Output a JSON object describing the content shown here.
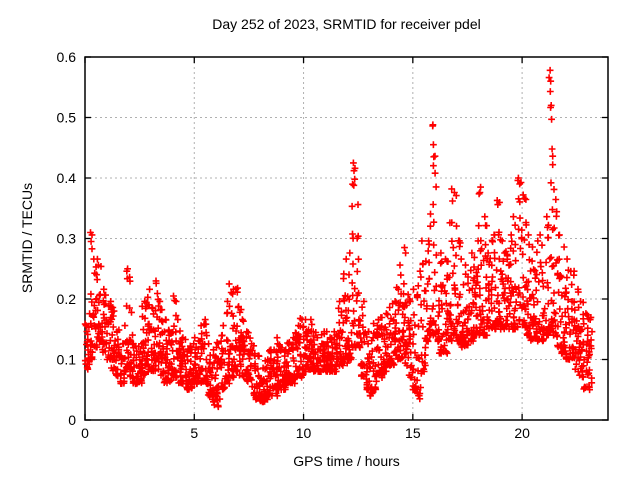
{
  "chart_data": {
    "type": "scatter",
    "title": "Day 252 of 2023, SRMTID for receiver pdel",
    "xlabel": "GPS time / hours",
    "ylabel": "SRMTID / TECUs",
    "xlim": [
      0,
      23.93
    ],
    "ylim": [
      0,
      0.6
    ],
    "xticks": {
      "values": [
        0,
        5,
        10,
        15,
        20
      ],
      "labels": [
        "0",
        "5",
        "10",
        "15",
        "20"
      ]
    },
    "yticks": {
      "values": [
        0,
        0.1,
        0.2,
        0.3,
        0.4,
        0.5,
        0.6
      ],
      "labels": [
        "0",
        "0.1",
        "0.2",
        "0.3",
        "0.4",
        "0.5",
        "0.6"
      ]
    },
    "grid": true,
    "grid_color": "#b0b0b0",
    "border_color": "#000000",
    "legend": "none",
    "marker": "plus",
    "marker_color": "#ff0000",
    "series": [
      {
        "name": "SRMTID",
        "points_per_bin": 20,
        "envelope_bins_hour_lo_hi": [
          [
            0.0,
            0.08,
            0.16
          ],
          [
            0.2,
            0.1,
            0.31
          ],
          [
            0.4,
            0.12,
            0.27
          ],
          [
            0.6,
            0.13,
            0.26
          ],
          [
            0.8,
            0.11,
            0.22
          ],
          [
            1.0,
            0.1,
            0.2
          ],
          [
            1.2,
            0.08,
            0.19
          ],
          [
            1.4,
            0.07,
            0.15
          ],
          [
            1.6,
            0.06,
            0.13
          ],
          [
            1.8,
            0.08,
            0.25
          ],
          [
            2.0,
            0.07,
            0.24
          ],
          [
            2.2,
            0.06,
            0.13
          ],
          [
            2.4,
            0.06,
            0.13
          ],
          [
            2.6,
            0.07,
            0.2
          ],
          [
            2.8,
            0.08,
            0.22
          ],
          [
            3.0,
            0.08,
            0.19
          ],
          [
            3.2,
            0.08,
            0.23
          ],
          [
            3.4,
            0.07,
            0.2
          ],
          [
            3.6,
            0.06,
            0.17
          ],
          [
            3.8,
            0.06,
            0.15
          ],
          [
            4.0,
            0.07,
            0.2
          ],
          [
            4.2,
            0.06,
            0.17
          ],
          [
            4.4,
            0.06,
            0.14
          ],
          [
            4.6,
            0.05,
            0.12
          ],
          [
            4.8,
            0.05,
            0.13
          ],
          [
            5.0,
            0.06,
            0.14
          ],
          [
            5.2,
            0.06,
            0.16
          ],
          [
            5.4,
            0.06,
            0.17
          ],
          [
            5.6,
            0.04,
            0.13
          ],
          [
            5.8,
            0.03,
            0.12
          ],
          [
            6.0,
            0.02,
            0.13
          ],
          [
            6.2,
            0.05,
            0.16
          ],
          [
            6.4,
            0.06,
            0.2
          ],
          [
            6.6,
            0.07,
            0.22
          ],
          [
            6.8,
            0.08,
            0.22
          ],
          [
            7.0,
            0.07,
            0.19
          ],
          [
            7.2,
            0.07,
            0.17
          ],
          [
            7.4,
            0.06,
            0.15
          ],
          [
            7.6,
            0.04,
            0.13
          ],
          [
            7.8,
            0.03,
            0.11
          ],
          [
            8.0,
            0.03,
            0.09
          ],
          [
            8.2,
            0.03,
            0.1
          ],
          [
            8.4,
            0.04,
            0.12
          ],
          [
            8.6,
            0.04,
            0.14
          ],
          [
            8.8,
            0.05,
            0.13
          ],
          [
            9.0,
            0.05,
            0.12
          ],
          [
            9.2,
            0.06,
            0.13
          ],
          [
            9.4,
            0.06,
            0.14
          ],
          [
            9.6,
            0.07,
            0.16
          ],
          [
            9.8,
            0.07,
            0.17
          ],
          [
            10.0,
            0.08,
            0.17
          ],
          [
            10.2,
            0.08,
            0.17
          ],
          [
            10.4,
            0.08,
            0.15
          ],
          [
            10.6,
            0.08,
            0.14
          ],
          [
            10.8,
            0.08,
            0.15
          ],
          [
            11.0,
            0.08,
            0.15
          ],
          [
            11.2,
            0.08,
            0.14
          ],
          [
            11.4,
            0.08,
            0.15
          ],
          [
            11.6,
            0.09,
            0.2
          ],
          [
            11.8,
            0.09,
            0.27
          ],
          [
            12.0,
            0.1,
            0.28
          ],
          [
            12.2,
            0.12,
            0.42
          ],
          [
            12.4,
            0.12,
            0.36
          ],
          [
            12.6,
            0.07,
            0.2
          ],
          [
            12.8,
            0.05,
            0.15
          ],
          [
            13.0,
            0.04,
            0.14
          ],
          [
            13.2,
            0.05,
            0.16
          ],
          [
            13.4,
            0.07,
            0.17
          ],
          [
            13.6,
            0.08,
            0.18
          ],
          [
            13.8,
            0.09,
            0.19
          ],
          [
            14.0,
            0.09,
            0.2
          ],
          [
            14.2,
            0.1,
            0.22
          ],
          [
            14.4,
            0.1,
            0.26
          ],
          [
            14.6,
            0.09,
            0.28
          ],
          [
            14.8,
            0.07,
            0.2
          ],
          [
            15.0,
            0.05,
            0.22
          ],
          [
            15.2,
            0.04,
            0.25
          ],
          [
            15.4,
            0.08,
            0.3
          ],
          [
            15.6,
            0.13,
            0.3
          ],
          [
            15.8,
            0.14,
            0.49
          ],
          [
            16.0,
            0.13,
            0.44
          ],
          [
            16.2,
            0.11,
            0.28
          ],
          [
            16.4,
            0.11,
            0.27
          ],
          [
            16.6,
            0.13,
            0.33
          ],
          [
            16.8,
            0.14,
            0.38
          ],
          [
            17.0,
            0.13,
            0.3
          ],
          [
            17.2,
            0.12,
            0.27
          ],
          [
            17.4,
            0.12,
            0.26
          ],
          [
            17.6,
            0.13,
            0.28
          ],
          [
            17.8,
            0.14,
            0.3
          ],
          [
            18.0,
            0.14,
            0.38
          ],
          [
            18.2,
            0.14,
            0.34
          ],
          [
            18.4,
            0.15,
            0.28
          ],
          [
            18.6,
            0.15,
            0.31
          ],
          [
            18.8,
            0.16,
            0.36
          ],
          [
            19.0,
            0.15,
            0.3
          ],
          [
            19.2,
            0.15,
            0.28
          ],
          [
            19.4,
            0.15,
            0.31
          ],
          [
            19.6,
            0.15,
            0.34
          ],
          [
            19.8,
            0.16,
            0.4
          ],
          [
            20.0,
            0.15,
            0.37
          ],
          [
            20.2,
            0.14,
            0.31
          ],
          [
            20.4,
            0.13,
            0.29
          ],
          [
            20.6,
            0.13,
            0.3
          ],
          [
            20.8,
            0.13,
            0.31
          ],
          [
            21.0,
            0.14,
            0.34
          ],
          [
            21.2,
            0.15,
            0.57
          ],
          [
            21.4,
            0.14,
            0.44
          ],
          [
            21.6,
            0.12,
            0.31
          ],
          [
            21.8,
            0.11,
            0.29
          ],
          [
            22.0,
            0.1,
            0.27
          ],
          [
            22.2,
            0.1,
            0.25
          ],
          [
            22.4,
            0.08,
            0.22
          ],
          [
            22.6,
            0.07,
            0.2
          ],
          [
            22.8,
            0.05,
            0.18
          ],
          [
            23.0,
            0.05,
            0.17
          ]
        ],
        "notable_points": [
          [
            0.25,
            0.31
          ],
          [
            0.28,
            0.295
          ],
          [
            0.32,
            0.283
          ],
          [
            1.95,
            0.25
          ],
          [
            3.25,
            0.23
          ],
          [
            4.05,
            0.205
          ],
          [
            6.6,
            0.225
          ],
          [
            12.28,
            0.425
          ],
          [
            12.31,
            0.412
          ],
          [
            12.34,
            0.398
          ],
          [
            12.3,
            0.388
          ],
          [
            14.62,
            0.285
          ],
          [
            15.92,
            0.488
          ],
          [
            15.94,
            0.455
          ],
          [
            15.96,
            0.435
          ],
          [
            16.02,
            0.408
          ],
          [
            16.78,
            0.382
          ],
          [
            18.1,
            0.385
          ],
          [
            18.86,
            0.363
          ],
          [
            19.83,
            0.4
          ],
          [
            19.89,
            0.39
          ],
          [
            20.05,
            0.372
          ],
          [
            21.28,
            0.578
          ],
          [
            21.31,
            0.56
          ],
          [
            21.29,
            0.543
          ],
          [
            21.33,
            0.52
          ],
          [
            21.35,
            0.497
          ],
          [
            21.37,
            0.448
          ],
          [
            21.4,
            0.422
          ],
          [
            21.32,
            0.392
          ],
          [
            5.92,
            0.025
          ],
          [
            8.12,
            0.03
          ],
          [
            15.32,
            0.035
          ]
        ]
      }
    ]
  }
}
